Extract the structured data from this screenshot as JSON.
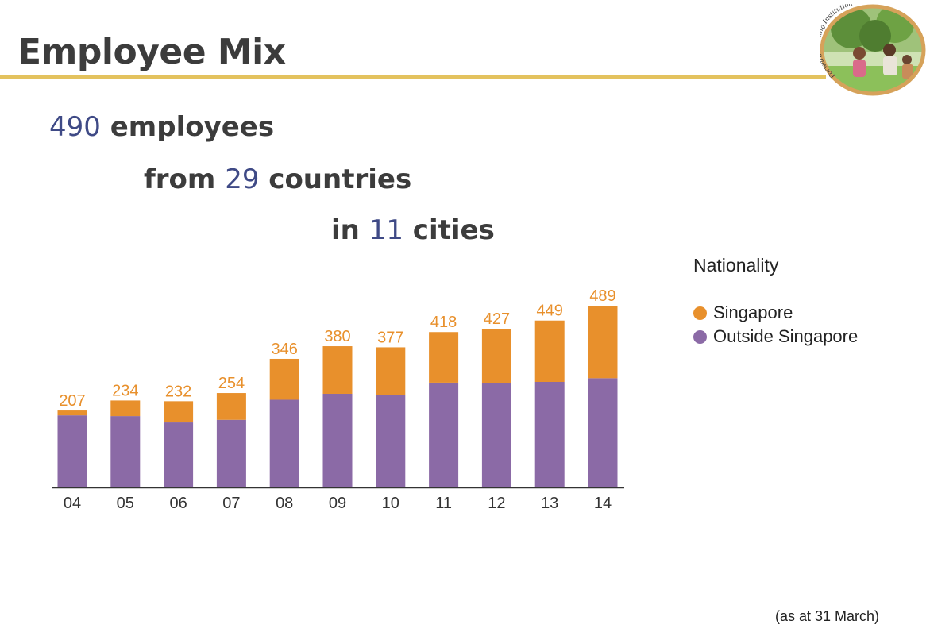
{
  "title": "Employee Mix",
  "headlines": {
    "line1": {
      "number": "490",
      "text": " employees"
    },
    "line2": {
      "prefix": "from ",
      "number": "29",
      "text": " countries"
    },
    "line3": {
      "prefix": "in ",
      "number": "11",
      "text": " cities"
    }
  },
  "logo": {
    "caption": "Forward Looking Institution",
    "icon": "family-planting-tree-photo"
  },
  "footnote": "(as at 31 March)",
  "colors": {
    "singapore": "#e8902c",
    "outside": "#8b6aa6",
    "accent_text": "#3f4a86",
    "rule": "#e3c25e"
  },
  "chart_data": {
    "type": "bar",
    "stacked": true,
    "categories": [
      "04",
      "05",
      "06",
      "07",
      "08",
      "09",
      "10",
      "11",
      "12",
      "13",
      "14"
    ],
    "totals": [
      207,
      234,
      232,
      254,
      346,
      380,
      377,
      418,
      427,
      449,
      489
    ],
    "series": [
      {
        "name": "Outside Singapore",
        "values": [
          194,
          192,
          175,
          182,
          236,
          252,
          248,
          282,
          280,
          284,
          294
        ]
      },
      {
        "name": "Singapore",
        "values": [
          13,
          42,
          57,
          72,
          110,
          128,
          129,
          136,
          147,
          165,
          195
        ]
      }
    ],
    "legend": {
      "title": "Nationality",
      "items": [
        "Singapore",
        "Outside Singapore"
      ],
      "placement": "right"
    },
    "ylim": [
      0,
      500
    ],
    "grid": false
  }
}
